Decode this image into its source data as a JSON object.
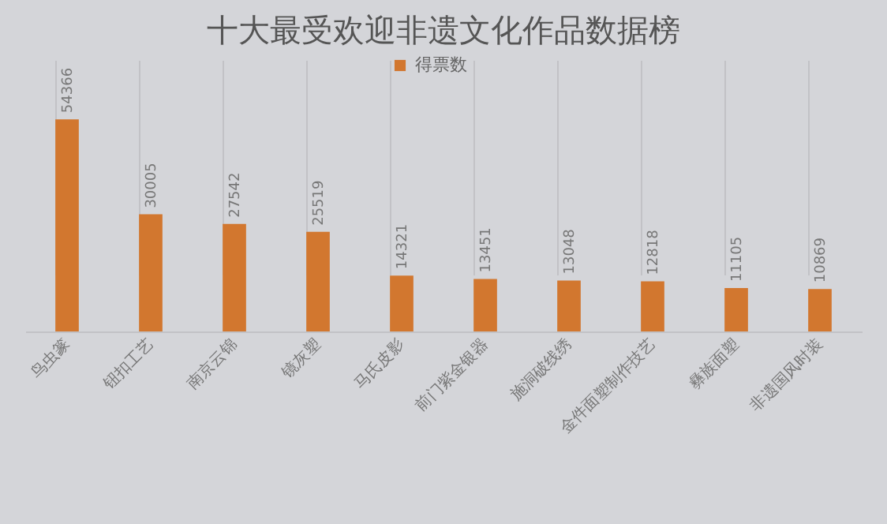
{
  "chart_data": {
    "type": "bar",
    "title": "十大最受欢迎非遗文化作品数据榜",
    "categories": [
      "鸟虫篆",
      "钮扣工艺",
      "南京云锦",
      "镜灰塑",
      "马氏皮影",
      "前门紫金银器",
      "施洞破线绣",
      "金件面塑制作技艺",
      "彝族面塑",
      "非遗国风时装"
    ],
    "series": [
      {
        "name": "得票数",
        "color": "#d2772f",
        "values": [
          54366,
          30005,
          27542,
          25519,
          14321,
          13451,
          13048,
          12818,
          11105,
          10869
        ]
      }
    ],
    "data_labels": true,
    "legend": "top",
    "grid": "x"
  }
}
